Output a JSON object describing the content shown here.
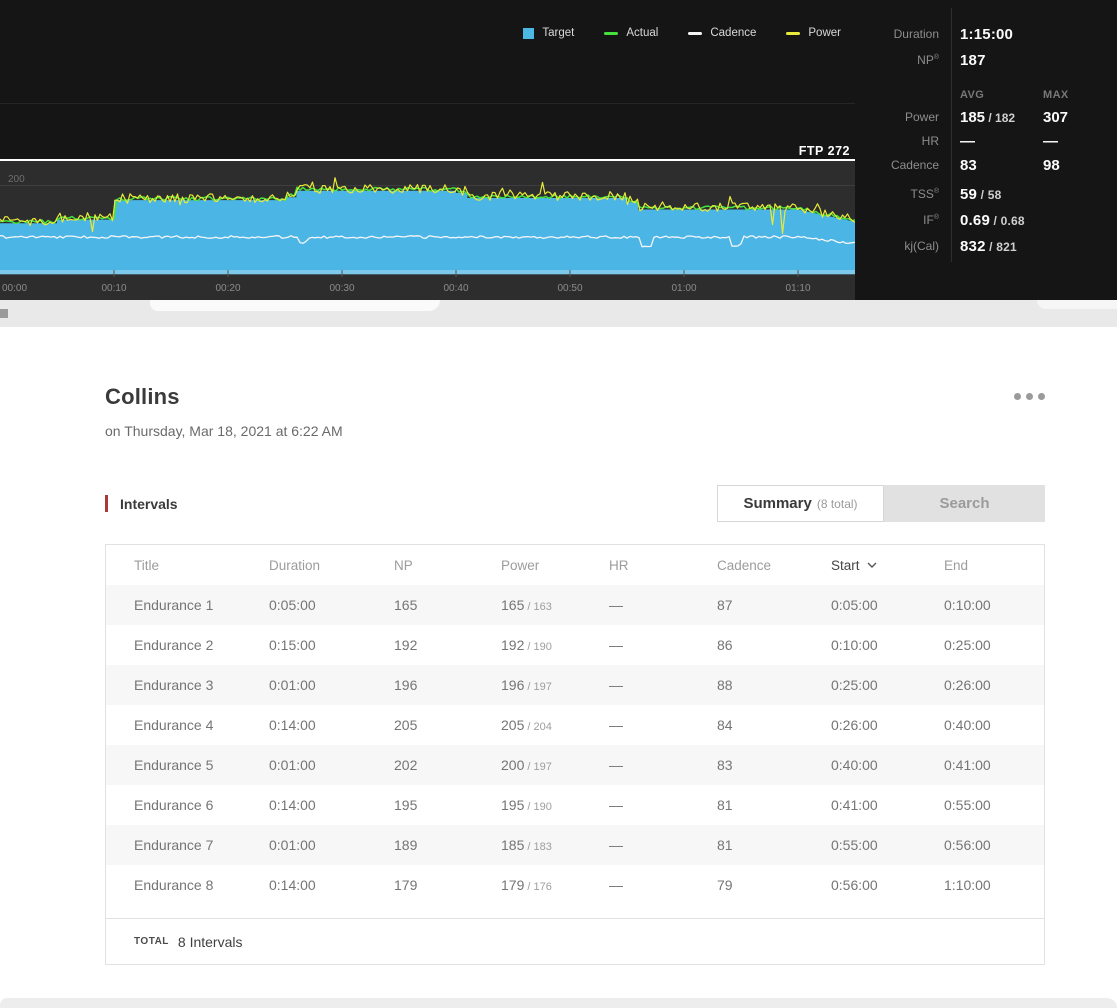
{
  "legend": {
    "items": [
      {
        "label": "Target",
        "color": "#4cb7e3",
        "swatch": "square"
      },
      {
        "label": "Actual",
        "color": "#45e23f",
        "swatch": "line"
      },
      {
        "label": "Cadence",
        "color": "#f5f5f5",
        "swatch": "line"
      },
      {
        "label": "Power",
        "color": "#e8ea39",
        "swatch": "line"
      }
    ]
  },
  "stats": {
    "duration": {
      "label": "Duration",
      "value": "1:15:00"
    },
    "np": {
      "label": "NP",
      "sup": "®",
      "value": "187"
    },
    "avg_header": "AVG",
    "max_header": "MAX",
    "power": {
      "label": "Power",
      "avg": "185",
      "avg_alt": " / 182",
      "max": "307"
    },
    "hr": {
      "label": "HR",
      "avg": "—",
      "max": "—"
    },
    "cadence": {
      "label": "Cadence",
      "avg": "83",
      "max": "98"
    },
    "tss": {
      "label": "TSS",
      "sup": "®",
      "value": "59",
      "alt": " / 58"
    },
    "if": {
      "label": "IF",
      "sup": "®",
      "value": "0.69",
      "alt": " / 0.68"
    },
    "kj": {
      "label": "kj(Cal)",
      "value": "832",
      "alt": " / 821"
    }
  },
  "workout": {
    "title": "Collins",
    "date": "on Thursday, Mar 18, 2021 at 6:22 AM"
  },
  "intervals_section": {
    "heading": "Intervals",
    "tabs": {
      "summary": {
        "label": "Summary",
        "suffix": "(8 total)"
      },
      "search": {
        "label": "Search"
      }
    }
  },
  "table": {
    "columns": [
      {
        "label": "Title"
      },
      {
        "label": "Duration"
      },
      {
        "label": "NP"
      },
      {
        "label": "Power"
      },
      {
        "label": "HR"
      },
      {
        "label": "Cadence"
      },
      {
        "label": "Start",
        "sorted": true
      },
      {
        "label": "End"
      }
    ],
    "rows": [
      {
        "title": "Endurance 1",
        "duration": "0:05:00",
        "np": "165",
        "power": "165",
        "power_alt": " / 163",
        "hr": "—",
        "cadence": "87",
        "start": "0:05:00",
        "end": "0:10:00"
      },
      {
        "title": "Endurance 2",
        "duration": "0:15:00",
        "np": "192",
        "power": "192",
        "power_alt": " / 190",
        "hr": "—",
        "cadence": "86",
        "start": "0:10:00",
        "end": "0:25:00"
      },
      {
        "title": "Endurance 3",
        "duration": "0:01:00",
        "np": "196",
        "power": "196",
        "power_alt": " / 197",
        "hr": "—",
        "cadence": "88",
        "start": "0:25:00",
        "end": "0:26:00"
      },
      {
        "title": "Endurance 4",
        "duration": "0:14:00",
        "np": "205",
        "power": "205",
        "power_alt": " / 204",
        "hr": "—",
        "cadence": "84",
        "start": "0:26:00",
        "end": "0:40:00"
      },
      {
        "title": "Endurance 5",
        "duration": "0:01:00",
        "np": "202",
        "power": "200",
        "power_alt": " / 197",
        "hr": "—",
        "cadence": "83",
        "start": "0:40:00",
        "end": "0:41:00"
      },
      {
        "title": "Endurance 6",
        "duration": "0:14:00",
        "np": "195",
        "power": "195",
        "power_alt": " / 190",
        "hr": "—",
        "cadence": "81",
        "start": "0:41:00",
        "end": "0:55:00"
      },
      {
        "title": "Endurance 7",
        "duration": "0:01:00",
        "np": "189",
        "power": "185",
        "power_alt": " / 183",
        "hr": "—",
        "cadence": "81",
        "start": "0:55:00",
        "end": "0:56:00"
      },
      {
        "title": "Endurance 8",
        "duration": "0:14:00",
        "np": "179",
        "power": "179",
        "power_alt": " / 176",
        "hr": "—",
        "cadence": "79",
        "start": "0:56:00",
        "end": "1:10:00"
      }
    ],
    "footer": {
      "total_label": "TOTAL",
      "total_value": "8 Intervals"
    }
  },
  "chart_data": {
    "type": "area",
    "legend_position": "top-right",
    "x_axis": {
      "unit": "time",
      "total_minutes": 75,
      "ticks": [
        {
          "label": "00:00",
          "min": 0
        },
        {
          "label": "00:10",
          "min": 10
        },
        {
          "label": "00:20",
          "min": 20
        },
        {
          "label": "00:30",
          "min": 30
        },
        {
          "label": "00:40",
          "min": 40
        },
        {
          "label": "00:50",
          "min": 50
        },
        {
          "label": "01:00",
          "min": 60
        },
        {
          "label": "01:10",
          "min": 70
        }
      ]
    },
    "y_axis": {
      "gridline": {
        "watts": 200,
        "label": "200"
      },
      "ftp": {
        "watts": 272,
        "label": "FTP 272"
      }
    },
    "series": [
      {
        "name": "Target",
        "type": "area",
        "color": "#4bb6e6",
        "segments": [
          {
            "start_min": 0,
            "end_min": 5,
            "watts": 160
          },
          {
            "start_min": 5,
            "end_min": 10,
            "watts": 165
          },
          {
            "start_min": 10,
            "end_min": 25,
            "watts": 192
          },
          {
            "start_min": 25,
            "end_min": 26,
            "watts": 196
          },
          {
            "start_min": 26,
            "end_min": 40,
            "watts": 205
          },
          {
            "start_min": 40,
            "end_min": 41,
            "watts": 202
          },
          {
            "start_min": 41,
            "end_min": 55,
            "watts": 195
          },
          {
            "start_min": 55,
            "end_min": 56,
            "watts": 189
          },
          {
            "start_min": 56,
            "end_min": 70,
            "watts": 179
          },
          {
            "start_min": 70,
            "end_min": 75,
            "watts_start": 179,
            "watts_end": 162
          }
        ]
      },
      {
        "name": "Actual",
        "type": "line",
        "color": "#45e23f",
        "avg_watts": 182
      },
      {
        "name": "Cadence",
        "type": "line",
        "color": "#f5f5f5",
        "avg_rpm": 83,
        "max_rpm": 98
      },
      {
        "name": "Power",
        "type": "line",
        "color": "#e8ea39",
        "avg_watts": 185,
        "max_watts": 307
      }
    ]
  }
}
